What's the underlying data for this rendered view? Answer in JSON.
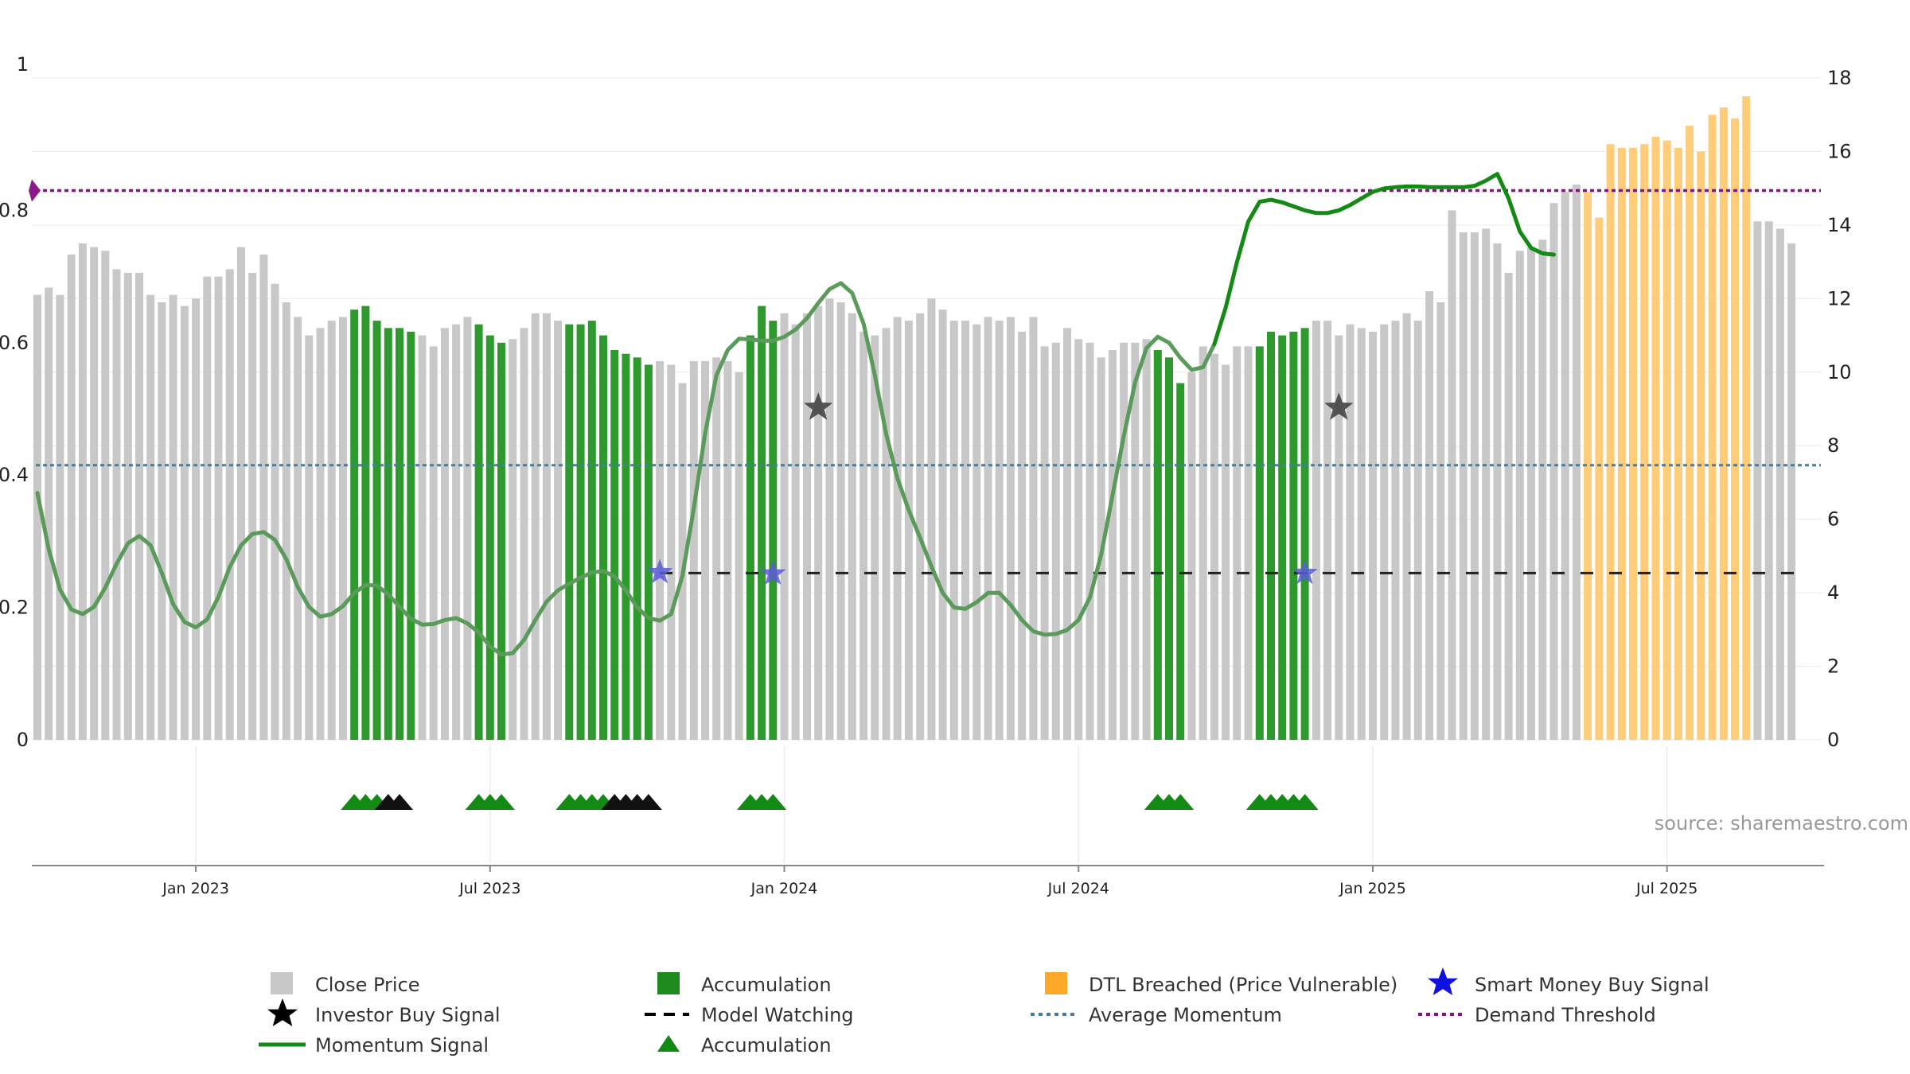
{
  "source": "source: sharemaestro.com",
  "colors": {
    "close": "#c8c8c8",
    "accumulation": "#2e9a2e",
    "dtl": "#ffcc7a",
    "momentum": "#5a9a5a",
    "momentum_strong": "#138a13",
    "smart_money": "#5a5ad8",
    "investor": "#444444",
    "average": "#3f7fa8",
    "demand": "#7a1a7a"
  },
  "legend": {
    "close_price": "Close Price",
    "accumulation": "Accumulation",
    "dtl": "DTL Breached (Price Vulnerable)",
    "smart_money": "Smart Money Buy Signal",
    "investor": "Investor Buy Signal",
    "model_watching": "Model Watching",
    "average_momentum": "Average Momentum",
    "demand_threshold": "Demand Threshold",
    "momentum_signal": "Momentum Signal",
    "accumulation_marker": "Accumulation"
  },
  "chart_data": {
    "type": "bar",
    "left_axis": {
      "ylim": [
        0,
        1
      ],
      "ticks": [
        0,
        0.2,
        0.4,
        0.6,
        0.8
      ],
      "top_label": "1"
    },
    "right_axis": {
      "ylim": [
        0,
        18
      ],
      "ticks": [
        0,
        2,
        4,
        6,
        8,
        10,
        12,
        14,
        16,
        18
      ]
    },
    "x_ticks": [
      {
        "week": 14,
        "label": "Jan 2023"
      },
      {
        "week": 40,
        "label": "Jul 2023"
      },
      {
        "week": 66,
        "label": "Jan 2024"
      },
      {
        "week": 92,
        "label": "Jul 2024"
      },
      {
        "week": 118,
        "label": "Jan 2025"
      },
      {
        "week": 144,
        "label": "Jul 2025"
      }
    ],
    "close_prices": [
      12.1,
      12.3,
      12.1,
      13.2,
      13.5,
      13.4,
      13.3,
      12.8,
      12.7,
      12.7,
      12.1,
      11.9,
      12.1,
      11.8,
      12.0,
      12.6,
      12.6,
      12.8,
      13.4,
      12.7,
      13.2,
      12.4,
      11.9,
      11.5,
      11.0,
      11.2,
      11.4,
      11.5,
      11.7,
      11.8,
      11.4,
      11.2,
      11.2,
      11.1,
      11.0,
      10.7,
      11.2,
      11.3,
      11.5,
      11.3,
      11.0,
      10.8,
      10.9,
      11.2,
      11.6,
      11.6,
      11.4,
      11.3,
      11.3,
      11.4,
      11.0,
      10.6,
      10.5,
      10.4,
      10.2,
      10.3,
      10.2,
      9.7,
      10.3,
      10.3,
      10.4,
      10.3,
      10.0,
      11.0,
      11.8,
      11.4,
      11.6,
      11.3,
      11.6,
      11.8,
      12.0,
      11.9,
      11.6,
      11.1,
      11.0,
      11.2,
      11.5,
      11.4,
      11.6,
      12.0,
      11.7,
      11.4,
      11.4,
      11.3,
      11.5,
      11.4,
      11.5,
      11.1,
      11.5,
      10.7,
      10.8,
      11.2,
      10.9,
      10.8,
      10.4,
      10.6,
      10.8,
      10.8,
      10.9,
      10.6,
      10.4,
      9.7,
      10.0,
      10.7,
      10.5,
      10.2,
      10.7,
      10.7,
      10.7,
      11.1,
      11.0,
      11.1,
      11.2,
      11.4,
      11.4,
      11.0,
      11.3,
      11.2,
      11.1,
      11.3,
      11.4,
      11.6,
      11.4,
      12.2,
      11.9,
      14.4,
      13.8,
      13.8,
      13.9,
      13.5,
      12.7,
      13.3,
      13.4,
      13.6,
      14.6,
      14.9,
      15.1,
      14.9,
      14.2,
      16.2,
      16.1,
      16.1,
      16.2,
      16.4,
      16.3,
      16.1,
      16.7,
      16.0,
      17.0,
      17.2,
      16.9,
      17.5,
      14.1,
      14.1,
      13.9,
      13.5
    ],
    "accumulation_weeks": [
      28,
      29,
      30,
      31,
      32,
      33,
      39,
      40,
      41,
      47,
      48,
      49,
      50,
      51,
      52,
      53,
      54,
      63,
      64,
      65,
      99,
      100,
      101,
      108,
      109,
      110,
      111,
      112
    ],
    "dtl_weeks": [
      137,
      138,
      139,
      140,
      141,
      142,
      143,
      144,
      145,
      146,
      147,
      148,
      149,
      150,
      151
    ],
    "momentum_signal": [
      0.373,
      0.288,
      0.227,
      0.197,
      0.19,
      0.201,
      0.23,
      0.266,
      0.297,
      0.308,
      0.294,
      0.252,
      0.205,
      0.178,
      0.17,
      0.182,
      0.216,
      0.261,
      0.294,
      0.311,
      0.314,
      0.302,
      0.273,
      0.231,
      0.201,
      0.186,
      0.19,
      0.202,
      0.222,
      0.234,
      0.233,
      0.22,
      0.201,
      0.183,
      0.174,
      0.175,
      0.181,
      0.184,
      0.176,
      0.162,
      0.141,
      0.129,
      0.131,
      0.151,
      0.181,
      0.209,
      0.226,
      0.236,
      0.245,
      0.253,
      0.255,
      0.247,
      0.226,
      0.2,
      0.184,
      0.18,
      0.19,
      0.248,
      0.35,
      0.463,
      0.551,
      0.589,
      0.606,
      0.605,
      0.603,
      0.603,
      0.609,
      0.62,
      0.637,
      0.66,
      0.681,
      0.69,
      0.675,
      0.629,
      0.551,
      0.462,
      0.395,
      0.347,
      0.305,
      0.262,
      0.222,
      0.2,
      0.198,
      0.208,
      0.222,
      0.222,
      0.204,
      0.181,
      0.164,
      0.159,
      0.16,
      0.166,
      0.181,
      0.215,
      0.28,
      0.369,
      0.459,
      0.54,
      0.592,
      0.609,
      0.6,
      0.577,
      0.559,
      0.563,
      0.598,
      0.653,
      0.722,
      0.783,
      0.813,
      0.816,
      0.812,
      0.806,
      0.8,
      0.796,
      0.796,
      0.8,
      0.808,
      0.818,
      0.828,
      0.833,
      0.835,
      0.836,
      0.836,
      0.835,
      0.835,
      0.835,
      0.835,
      0.837,
      0.845,
      0.855,
      0.818,
      0.768,
      0.743,
      0.735,
      0.733
    ],
    "average_momentum": 0.415,
    "demand_threshold": 0.83,
    "model_watching": {
      "level": 0.252,
      "segments": [
        [
          55,
          65
        ],
        [
          68,
          156
        ]
      ]
    },
    "smart_money_signals": [
      {
        "week": 55,
        "y": 0.253
      },
      {
        "week": 65,
        "y": 0.251
      },
      {
        "week": 112,
        "y": 0.252
      }
    ],
    "investor_buy_signals": [
      {
        "week": 69,
        "y": 0.502
      },
      {
        "week": 115,
        "y": 0.502
      }
    ],
    "accumulation_markers": [
      {
        "week": 28,
        "color": "green"
      },
      {
        "week": 29,
        "color": "green"
      },
      {
        "week": 30,
        "color": "green"
      },
      {
        "week": 31,
        "color": "black"
      },
      {
        "week": 32,
        "color": "black"
      },
      {
        "week": 39,
        "color": "green"
      },
      {
        "week": 40,
        "color": "green"
      },
      {
        "week": 41,
        "color": "green"
      },
      {
        "week": 47,
        "color": "green"
      },
      {
        "week": 48,
        "color": "green"
      },
      {
        "week": 49,
        "color": "green"
      },
      {
        "week": 50,
        "color": "green"
      },
      {
        "week": 51,
        "color": "black"
      },
      {
        "week": 52,
        "color": "black"
      },
      {
        "week": 53,
        "color": "black"
      },
      {
        "week": 54,
        "color": "black"
      },
      {
        "week": 63,
        "color": "green"
      },
      {
        "week": 64,
        "color": "green"
      },
      {
        "week": 65,
        "color": "green"
      },
      {
        "week": 99,
        "color": "green"
      },
      {
        "week": 100,
        "color": "green"
      },
      {
        "week": 101,
        "color": "green"
      },
      {
        "week": 108,
        "color": "green"
      },
      {
        "week": 109,
        "color": "green"
      },
      {
        "week": 110,
        "color": "green"
      },
      {
        "week": 111,
        "color": "green"
      },
      {
        "week": 112,
        "color": "green"
      }
    ]
  }
}
